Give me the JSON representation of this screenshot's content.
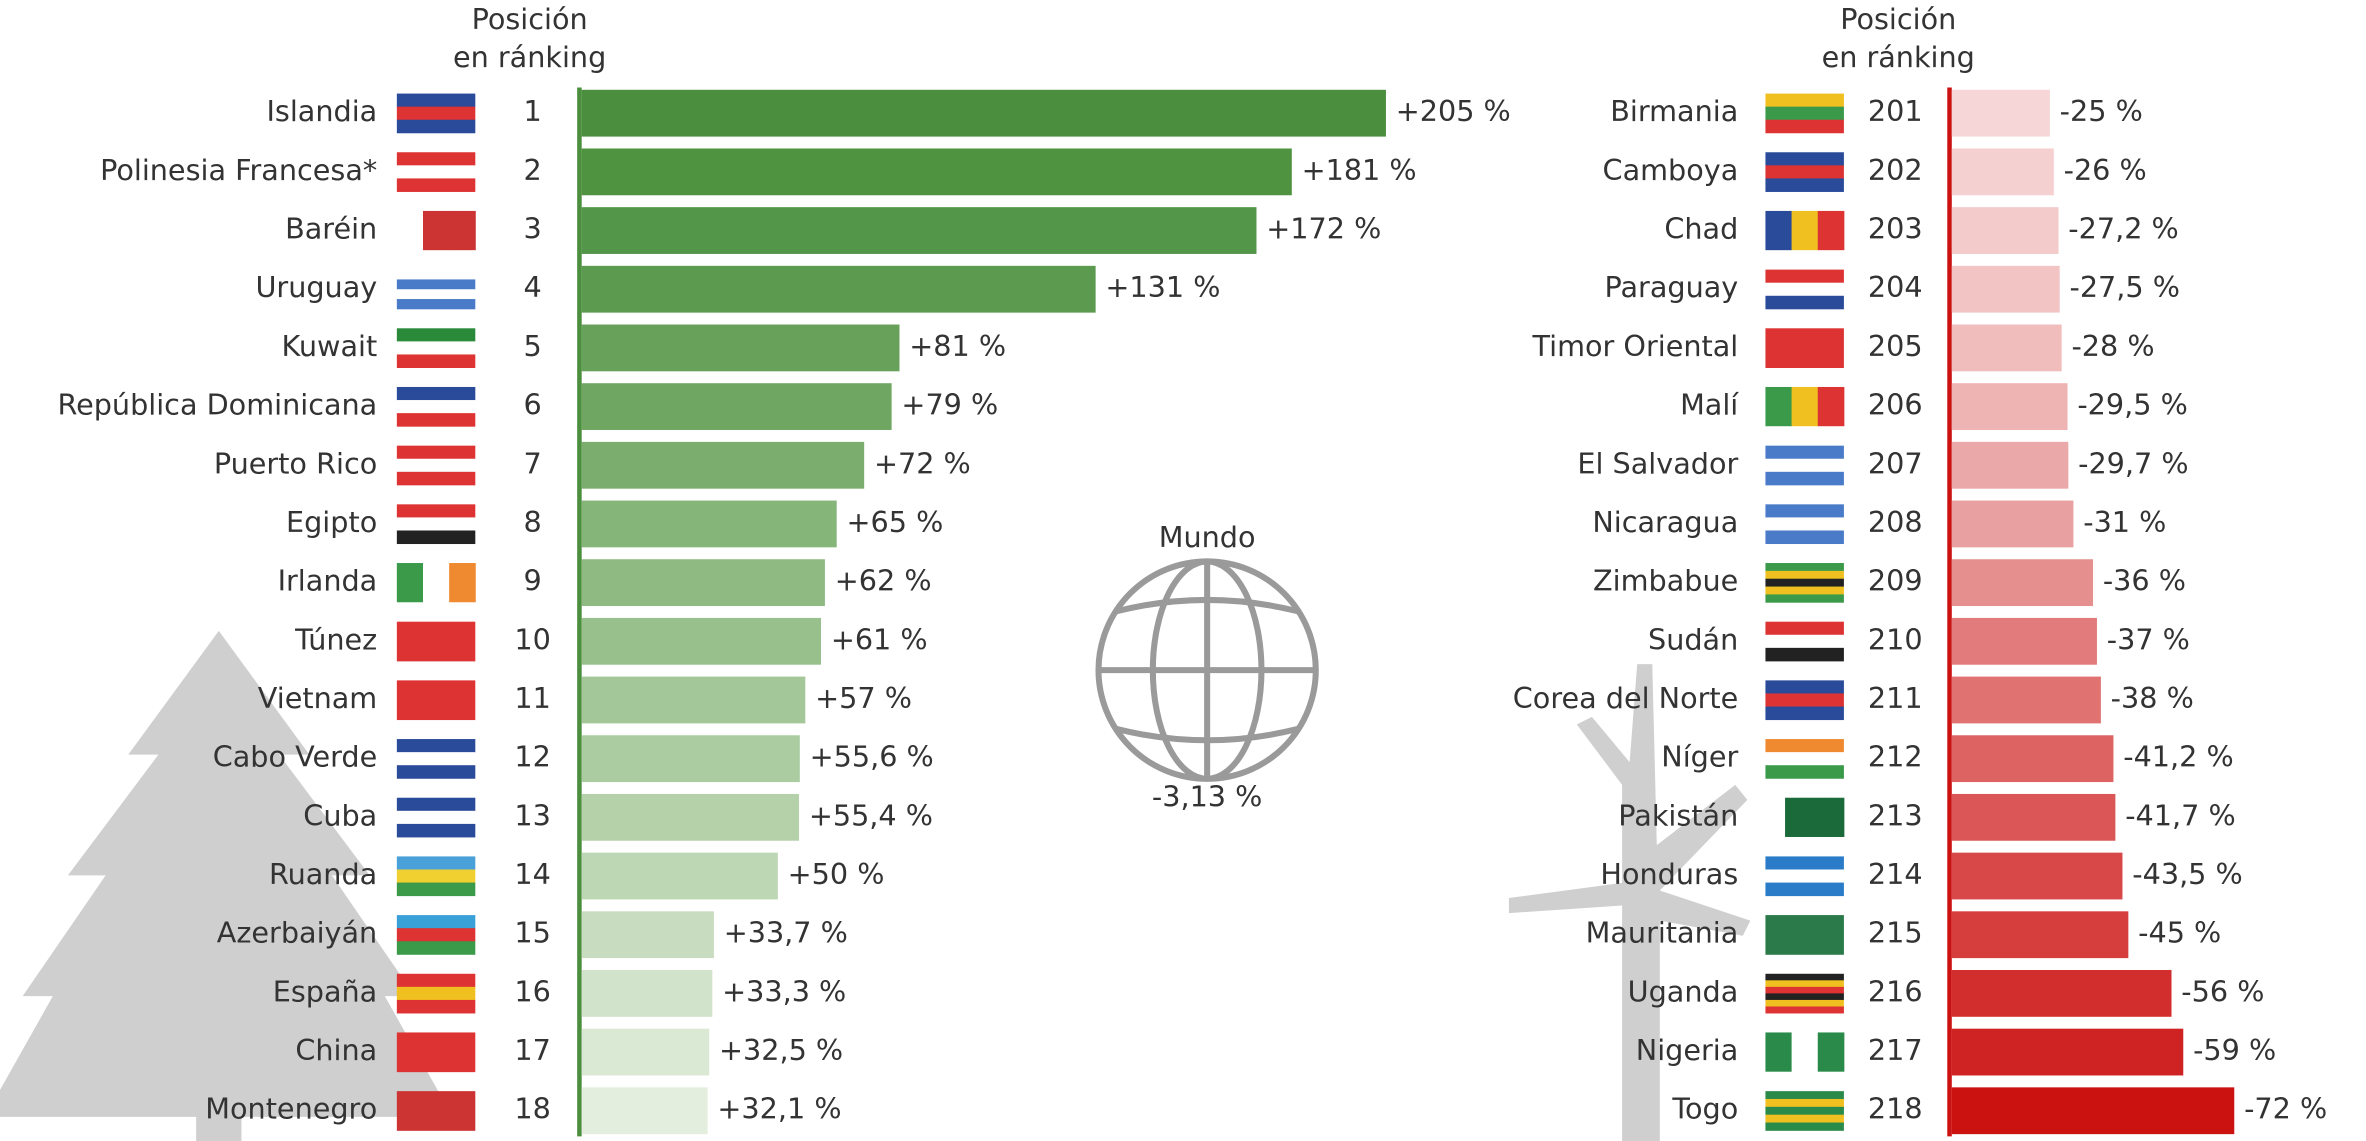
{
  "chart_data": [
    {
      "type": "bar",
      "header": [
        "Posición",
        "en ránking"
      ],
      "categories": [
        "Islandia",
        "Polinesia Francesa*",
        "Baréin",
        "Uruguay",
        "Kuwait",
        "República Dominicana",
        "Puerto Rico",
        "Egipto",
        "Irlanda",
        "Túnez",
        "Vietnam",
        "Cabo Verde",
        "Cuba",
        "Ruanda",
        "Azerbaiyán",
        "España",
        "China",
        "Montenegro"
      ],
      "ranks": [
        1,
        2,
        3,
        4,
        5,
        6,
        7,
        8,
        9,
        10,
        11,
        12,
        13,
        14,
        15,
        16,
        17,
        18
      ],
      "values": [
        205,
        181,
        172,
        131,
        81,
        79,
        72,
        65,
        62,
        61,
        57,
        55.6,
        55.4,
        50,
        33.7,
        33.3,
        32.5,
        32.1
      ],
      "value_labels": [
        "+205 %",
        "+181 %",
        "+172 %",
        "+131 %",
        "+81 %",
        "+79 %",
        "+72 %",
        "+65 %",
        "+62 %",
        "+61 %",
        "+57 %",
        "+55,6 %",
        "+55,4 %",
        "+50 %",
        "+33,7 %",
        "+33,3 %",
        "+32,5 %",
        "+32,1 %"
      ],
      "colors": [
        "#4b8e3e",
        "#4f9341",
        "#53964a",
        "#5c9b4f",
        "#68a25a",
        "#6fa762",
        "#7bae6e",
        "#86b57a",
        "#8fbb83",
        "#98c08c",
        "#a3c798",
        "#abcca1",
        "#b4d1aa",
        "#bdd7b4",
        "#c8ddc0",
        "#d1e3ca",
        "#dae9d4",
        "#e3eede"
      ],
      "axis_color": "#4b8e3e"
    },
    {
      "type": "bar",
      "header": [
        "Posición",
        "en ránking"
      ],
      "categories": [
        "Birmania",
        "Camboya",
        "Chad",
        "Paraguay",
        "Timor Oriental",
        "Malí",
        "El Salvador",
        "Nicaragua",
        "Zimbabue",
        "Sudán",
        "Corea del Norte",
        "Níger",
        "Pakistán",
        "Honduras",
        "Mauritania",
        "Uganda",
        "Nigeria",
        "Togo"
      ],
      "ranks": [
        201,
        202,
        203,
        204,
        205,
        206,
        207,
        208,
        209,
        210,
        211,
        212,
        213,
        214,
        215,
        216,
        217,
        218
      ],
      "values": [
        -25,
        -26,
        -27.2,
        -27.5,
        -28,
        -29.5,
        -29.7,
        -31,
        -36,
        -37,
        -38,
        -41.2,
        -41.7,
        -43.5,
        -45,
        -56,
        -59,
        -72
      ],
      "value_labels": [
        "-25 %",
        "-26 %",
        "-27,2 %",
        "-27,5 %",
        "-28 %",
        "-29,5 %",
        "-29,7 %",
        "-31 %",
        "-36 %",
        "-37 %",
        "-38 %",
        "-41,2 %",
        "-41,7 %",
        "-43,5 %",
        "-45 %",
        "-56 %",
        "-59 %",
        "-72 %"
      ],
      "colors": [
        "#f6d6d6",
        "#f5d0d0",
        "#f4cbcb",
        "#f2c4c4",
        "#f0bcbc",
        "#eeb3b3",
        "#eaa8a8",
        "#e8a0a0",
        "#e58f8f",
        "#e27c7c",
        "#e07272",
        "#dd6262",
        "#db5757",
        "#d84848",
        "#d63d3d",
        "#d22e2e",
        "#cf2222",
        "#cc1111"
      ],
      "axis_color": "#cc1111"
    }
  ],
  "world": {
    "label": "Mundo",
    "value": -3.13,
    "value_label": "-3,13 %"
  }
}
